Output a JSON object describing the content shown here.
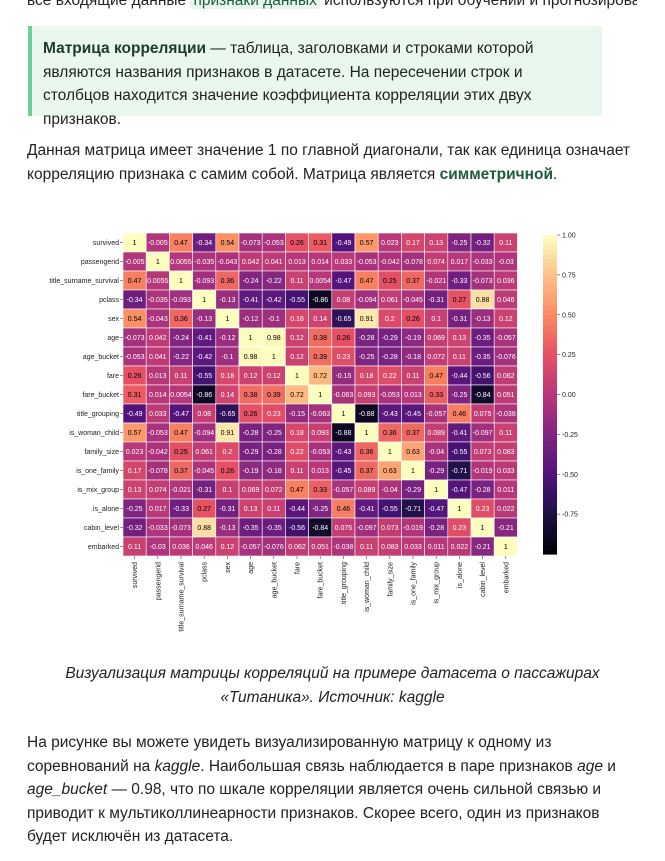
{
  "top_fragment": {
    "before": "все входящие данные",
    "code": "признаки данных",
    "after": "используются при обучении и прогнозировании модели"
  },
  "callout": {
    "term": "Матрица корреляции",
    "text": " — таблица, заголовками и строками которой являются названия признаков в датасете. На пересечении строк и столбцов находится значение коэффициента корреляции этих двух признаков."
  },
  "paragraph1": {
    "text": "Данная матрица имеет значение 1 по главной диагонали, так как единица означает корреляцию признака с самим собой. Матрица является ",
    "strong": "симметричной",
    "end": "."
  },
  "caption": {
    "line1": "Визуализация матрицы корреляций на примере датасета о пассажирах",
    "line2": "«Титаника». Источник: kaggle"
  },
  "paragraph2": {
    "t1": "На рисунке вы можете увидеть визуализированную матрицу к одному из соревнований на ",
    "kaggle": "kaggle",
    "t2": ". Наибольшая связь наблюдается в паре признаков ",
    "age": "age",
    "t3": " и ",
    "age_bucket": "age_bucket",
    "t4": " — 0.98, что по шкале корреляции является очень сильной связью и приводит к мультиколлинеарности признаков. Скорее всего, один из признаков будет исключён из датасета."
  },
  "chart_data": {
    "type": "heatmap",
    "title": "",
    "colormap": "magma",
    "vmin": -1.0,
    "vmax": 1.0,
    "colorbar_ticks": [
      "1.00",
      "0.75",
      "0.50",
      "0.25",
      "0.00",
      "-0.25",
      "-0.50",
      "-0.75"
    ],
    "colorbar_tick_values": [
      1.0,
      0.75,
      0.5,
      0.25,
      0.0,
      -0.25,
      -0.5,
      -0.75
    ],
    "labels": [
      "survived",
      "passengerid",
      "title_surname_survival",
      "pclass",
      "sex",
      "age",
      "age_bucket",
      "fare",
      "fare_bucket",
      "title_grouping",
      "is_woman_child",
      "family_size",
      "is_one_family",
      "is_mix_group",
      "is_alone",
      "cabin_level",
      "embarked"
    ],
    "values": [
      [
        1,
        -0.005,
        0.47,
        -0.34,
        0.54,
        -0.073,
        -0.053,
        0.26,
        0.31,
        -0.49,
        0.57,
        0.023,
        0.17,
        0.13,
        -0.25,
        -0.32,
        0.11
      ],
      [
        -0.005,
        1,
        0.0055,
        -0.035,
        -0.043,
        0.042,
        0.041,
        0.013,
        0.014,
        0.033,
        -0.053,
        -0.042,
        -0.078,
        0.074,
        0.017,
        -0.033,
        -0.03
      ],
      [
        0.47,
        0.0055,
        1,
        -0.093,
        0.36,
        -0.24,
        -0.22,
        0.11,
        0.0054,
        -0.47,
        0.47,
        0.25,
        0.37,
        -0.021,
        -0.33,
        -0.073,
        0.036
      ],
      [
        -0.34,
        -0.035,
        -0.093,
        1,
        -0.13,
        -0.41,
        -0.42,
        -0.55,
        -0.86,
        0.08,
        -0.094,
        0.061,
        -0.045,
        -0.31,
        0.27,
        0.88,
        0.046
      ],
      [
        0.54,
        -0.043,
        0.36,
        -0.13,
        1,
        -0.12,
        -0.1,
        0.18,
        0.14,
        -0.65,
        0.91,
        0.2,
        0.26,
        0.1,
        -0.31,
        -0.13,
        0.12
      ],
      [
        -0.073,
        0.042,
        -0.24,
        -0.41,
        -0.12,
        1,
        0.98,
        0.12,
        0.38,
        0.26,
        -0.28,
        -0.29,
        -0.19,
        0.069,
        0.13,
        -0.35,
        -0.057
      ],
      [
        -0.053,
        0.041,
        -0.22,
        -0.42,
        -0.1,
        0.98,
        1,
        0.12,
        0.39,
        0.23,
        -0.25,
        -0.28,
        -0.18,
        0.072,
        0.11,
        -0.35,
        -0.076
      ],
      [
        0.26,
        0.013,
        0.11,
        -0.55,
        0.18,
        0.12,
        0.12,
        1,
        0.72,
        -0.15,
        0.18,
        0.22,
        0.11,
        0.47,
        -0.44,
        -0.56,
        0.062
      ],
      [
        0.31,
        0.014,
        0.0054,
        -0.86,
        0.14,
        0.38,
        0.39,
        0.72,
        1,
        -0.063,
        0.093,
        -0.053,
        0.013,
        0.33,
        -0.25,
        -0.84,
        0.051
      ],
      [
        -0.49,
        0.033,
        -0.47,
        0.08,
        -0.65,
        0.26,
        0.23,
        -0.15,
        -0.063,
        1,
        -0.88,
        -0.43,
        -0.45,
        -0.057,
        0.46,
        0.075,
        -0.038
      ],
      [
        0.57,
        -0.053,
        0.47,
        -0.094,
        0.91,
        -0.28,
        -0.25,
        0.18,
        0.093,
        -0.88,
        1,
        0.36,
        0.37,
        0.089,
        -0.41,
        -0.097,
        0.11
      ],
      [
        0.023,
        -0.042,
        0.25,
        0.061,
        0.2,
        -0.29,
        -0.28,
        0.22,
        -0.053,
        -0.43,
        0.36,
        1,
        0.63,
        -0.04,
        -0.55,
        0.073,
        0.083
      ],
      [
        0.17,
        -0.078,
        0.37,
        -0.045,
        0.26,
        -0.19,
        -0.18,
        0.11,
        0.013,
        -0.45,
        0.37,
        0.63,
        1,
        -0.29,
        -0.71,
        -0.019,
        0.033
      ],
      [
        0.13,
        0.074,
        -0.021,
        -0.31,
        0.1,
        0.069,
        0.072,
        0.47,
        0.33,
        -0.057,
        0.089,
        -0.04,
        -0.29,
        1,
        -0.47,
        -0.28,
        0.011
      ],
      [
        -0.25,
        0.017,
        -0.33,
        0.27,
        -0.31,
        0.13,
        0.11,
        -0.44,
        -0.25,
        0.46,
        -0.41,
        -0.55,
        -0.71,
        -0.47,
        1,
        0.23,
        0.022
      ],
      [
        -0.32,
        -0.033,
        -0.073,
        0.88,
        -0.13,
        -0.35,
        -0.35,
        -0.56,
        -0.84,
        0.075,
        -0.097,
        0.073,
        -0.019,
        -0.28,
        0.23,
        1,
        -0.21
      ],
      [
        0.11,
        -0.03,
        0.036,
        0.046,
        0.12,
        -0.057,
        -0.076,
        0.062,
        0.051,
        -0.038,
        0.11,
        0.083,
        0.033,
        0.011,
        0.022,
        -0.21,
        1
      ]
    ]
  }
}
